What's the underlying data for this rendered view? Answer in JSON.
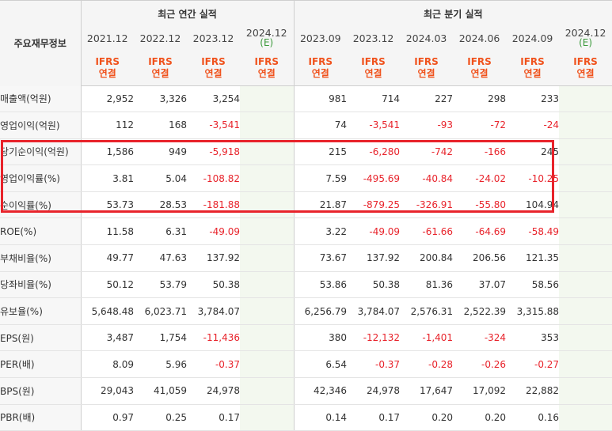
{
  "header": {
    "corner_label": "주요재무정보",
    "annual_group": "최근 연간 실적",
    "quarter_group": "최근 분기 실적",
    "periods": [
      {
        "label": "2021.12",
        "estimate": ""
      },
      {
        "label": "2022.12",
        "estimate": ""
      },
      {
        "label": "2023.12",
        "estimate": ""
      },
      {
        "label": "2024.12",
        "estimate": "(E)"
      },
      {
        "label": "2023.09",
        "estimate": ""
      },
      {
        "label": "2023.12",
        "estimate": ""
      },
      {
        "label": "2024.03",
        "estimate": ""
      },
      {
        "label": "2024.06",
        "estimate": ""
      },
      {
        "label": "2024.09",
        "estimate": ""
      },
      {
        "label": "2024.12",
        "estimate": "(E)"
      }
    ],
    "ifrs_top": "IFRS",
    "ifrs_bottom": "연결"
  },
  "rows": [
    {
      "label": "매출액(억원)",
      "values": [
        "2,952",
        "3,326",
        "3,254",
        "",
        "981",
        "714",
        "227",
        "298",
        "233",
        ""
      ]
    },
    {
      "label": "영업이익(억원)",
      "values": [
        "112",
        "168",
        "-3,541",
        "",
        "74",
        "-3,541",
        "-93",
        "-72",
        "-24",
        ""
      ]
    },
    {
      "label": "당기순이익(억원)",
      "values": [
        "1,586",
        "949",
        "-5,918",
        "",
        "215",
        "-6,280",
        "-742",
        "-166",
        "245",
        ""
      ]
    },
    {
      "label": "영업이익률(%)",
      "values": [
        "3.81",
        "5.04",
        "-108.82",
        "",
        "7.59",
        "-495.69",
        "-40.84",
        "-24.02",
        "-10.25",
        ""
      ]
    },
    {
      "label": "순이익률(%)",
      "values": [
        "53.73",
        "28.53",
        "-181.88",
        "",
        "21.87",
        "-879.25",
        "-326.91",
        "-55.80",
        "104.94",
        ""
      ]
    },
    {
      "label": "ROE(%)",
      "values": [
        "11.58",
        "6.31",
        "-49.09",
        "",
        "3.22",
        "-49.09",
        "-61.66",
        "-64.69",
        "-58.49",
        ""
      ]
    },
    {
      "label": "부채비율(%)",
      "values": [
        "49.77",
        "47.63",
        "137.92",
        "",
        "73.67",
        "137.92",
        "200.84",
        "206.56",
        "121.35",
        ""
      ]
    },
    {
      "label": "당좌비율(%)",
      "values": [
        "50.12",
        "53.79",
        "50.38",
        "",
        "53.86",
        "50.38",
        "81.36",
        "37.07",
        "58.56",
        ""
      ]
    },
    {
      "label": "유보율(%)",
      "values": [
        "5,648.48",
        "6,023.71",
        "3,784.07",
        "",
        "6,256.79",
        "3,784.07",
        "2,576.31",
        "2,522.39",
        "3,315.88",
        ""
      ]
    },
    {
      "label": "EPS(원)",
      "values": [
        "3,487",
        "1,754",
        "-11,436",
        "",
        "380",
        "-12,132",
        "-1,401",
        "-324",
        "353",
        ""
      ]
    },
    {
      "label": "PER(배)",
      "values": [
        "8.09",
        "5.96",
        "-0.37",
        "",
        "6.54",
        "-0.37",
        "-0.28",
        "-0.26",
        "-0.27",
        ""
      ]
    },
    {
      "label": "BPS(원)",
      "values": [
        "29,043",
        "41,059",
        "24,978",
        "",
        "42,346",
        "24,978",
        "17,647",
        "17,092",
        "22,882",
        ""
      ]
    },
    {
      "label": "PBR(배)",
      "values": [
        "0.97",
        "0.25",
        "0.17",
        "",
        "0.14",
        "0.17",
        "0.20",
        "0.20",
        "0.16",
        ""
      ]
    }
  ]
}
